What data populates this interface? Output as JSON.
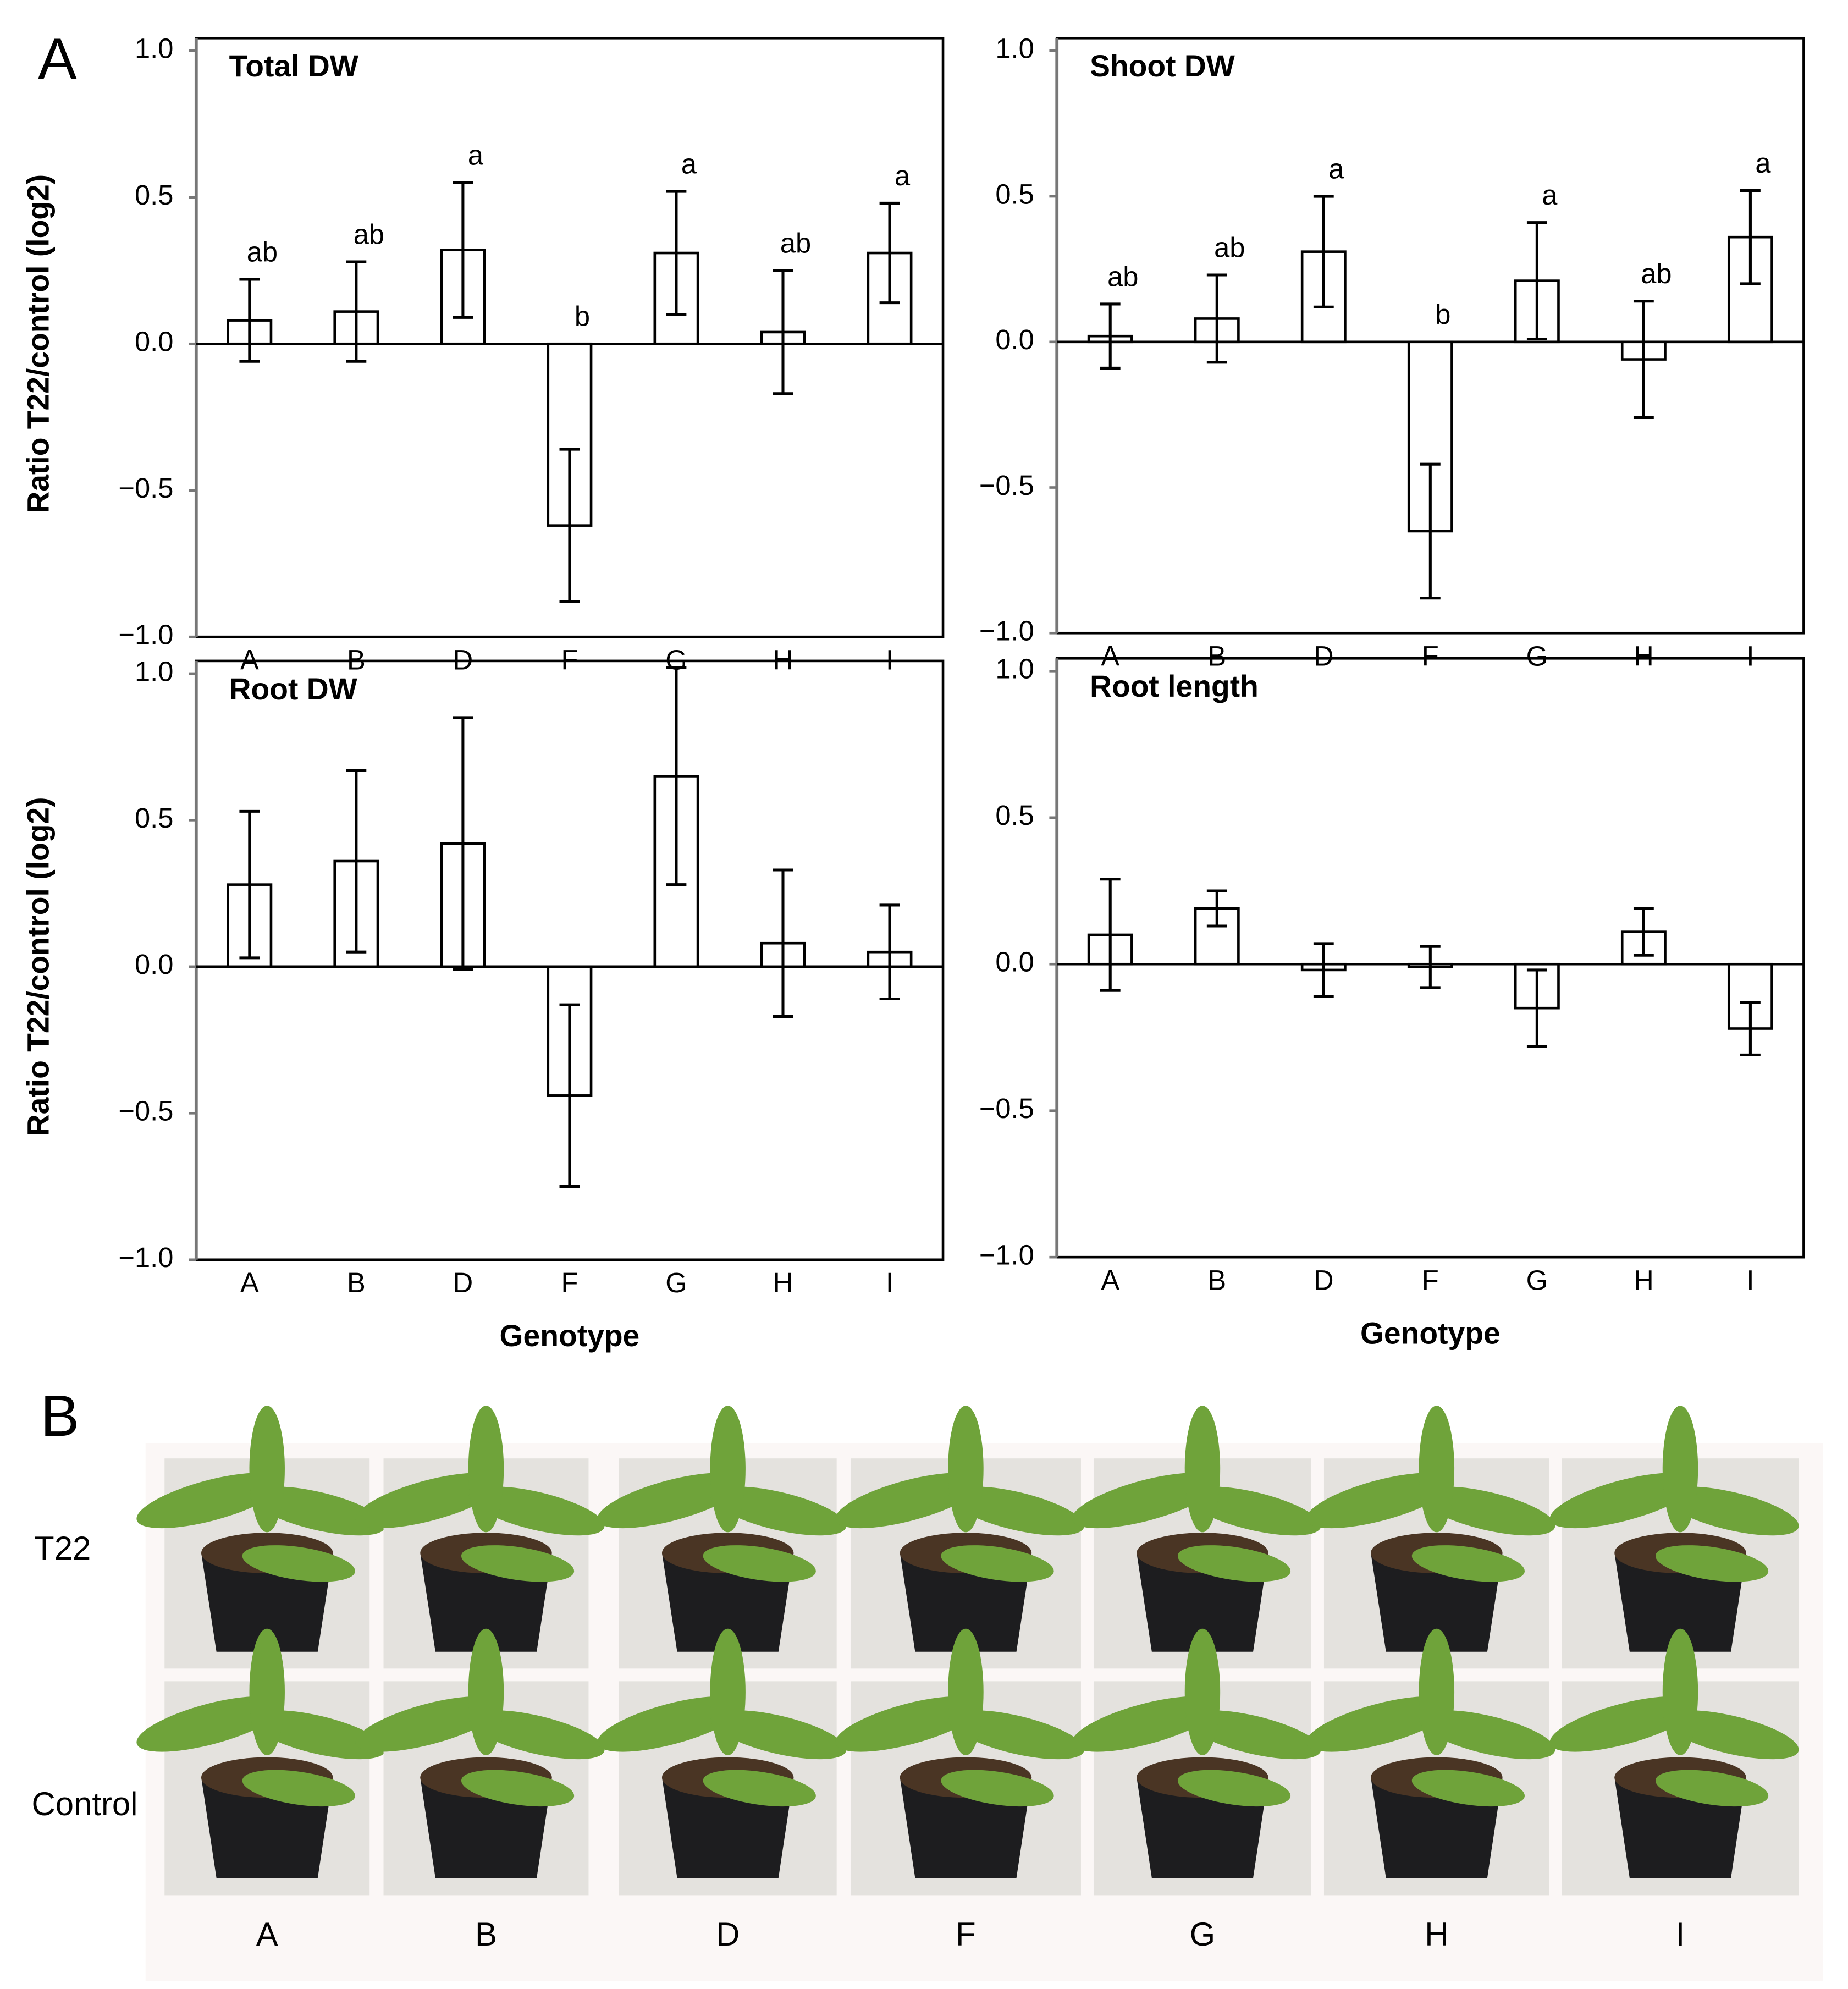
{
  "panel_labels": [
    "A",
    "B"
  ],
  "chart_data": [
    {
      "type": "bar",
      "title": "Total DW",
      "ylabel": "Ratio T22/control  (log2)",
      "categories": [
        "A",
        "B",
        "D",
        "F",
        "G",
        "H",
        "I"
      ],
      "values": [
        0.08,
        0.11,
        0.32,
        -0.62,
        0.31,
        0.04,
        0.31
      ],
      "errors": [
        0.14,
        0.17,
        0.23,
        0.26,
        0.21,
        0.21,
        0.17
      ],
      "annotations": [
        "ab",
        "ab",
        "a",
        "b",
        "a",
        "ab",
        "a"
      ],
      "ylim": [
        -1.0,
        1.0
      ],
      "yticks": [
        {
          "value": -1.0,
          "label": "−1.0"
        },
        {
          "value": -0.5,
          "label": "−0.5"
        },
        {
          "value": 0.0,
          "label": "0.0"
        },
        {
          "value": 0.5,
          "label": "0.5"
        },
        {
          "value": 1.0,
          "label": "1.0"
        }
      ]
    },
    {
      "type": "bar",
      "title": "Shoot DW",
      "categories": [
        "A",
        "B",
        "D",
        "F",
        "G",
        "H",
        "I"
      ],
      "values": [
        0.02,
        0.08,
        0.31,
        -0.65,
        0.21,
        -0.06,
        0.36
      ],
      "errors": [
        0.11,
        0.15,
        0.19,
        0.23,
        0.2,
        0.2,
        0.16
      ],
      "annotations": [
        "ab",
        "ab",
        "a",
        "b",
        "a",
        "ab",
        "a"
      ],
      "ylim": [
        -1.0,
        1.0
      ],
      "yticks": [
        {
          "value": -1.0,
          "label": "−1.0"
        },
        {
          "value": -0.5,
          "label": "−0.5"
        },
        {
          "value": 0.0,
          "label": "0.0"
        },
        {
          "value": 0.5,
          "label": "0.5"
        },
        {
          "value": 1.0,
          "label": "1.0"
        }
      ]
    },
    {
      "type": "bar",
      "title": "Root DW",
      "ylabel": "Ratio T22/control  (log2)",
      "xlabel": "Genotype",
      "categories": [
        "A",
        "B",
        "D",
        "F",
        "G",
        "H",
        "I"
      ],
      "values": [
        0.28,
        0.36,
        0.42,
        -0.44,
        0.65,
        0.08,
        0.05
      ],
      "errors": [
        0.25,
        0.31,
        0.43,
        0.31,
        0.37,
        0.25,
        0.16
      ],
      "ylim": [
        -1.0,
        1.0
      ],
      "yticks": [
        {
          "value": -1.0,
          "label": "−1.0"
        },
        {
          "value": -0.5,
          "label": "−0.5"
        },
        {
          "value": 0.0,
          "label": "0.0"
        },
        {
          "value": 0.5,
          "label": "0.5"
        },
        {
          "value": 1.0,
          "label": "1.0"
        }
      ]
    },
    {
      "type": "bar",
      "title": "Root length",
      "xlabel": "Genotype",
      "categories": [
        "A",
        "B",
        "D",
        "F",
        "G",
        "H",
        "I"
      ],
      "values": [
        0.1,
        0.19,
        -0.02,
        -0.01,
        -0.15,
        0.11,
        -0.22
      ],
      "errors": [
        0.19,
        0.06,
        0.09,
        0.07,
        0.13,
        0.08,
        0.09
      ],
      "ylim": [
        -1.0,
        1.0
      ],
      "yticks": [
        {
          "value": -1.0,
          "label": "−1.0"
        },
        {
          "value": -0.5,
          "label": "−0.5"
        },
        {
          "value": 0.0,
          "label": "0.0"
        },
        {
          "value": 0.5,
          "label": "0.5"
        },
        {
          "value": 1.0,
          "label": "1.0"
        }
      ]
    }
  ],
  "photo_panel": {
    "row_labels": [
      "T22",
      "Control"
    ],
    "column_labels": [
      "A",
      "B",
      "D",
      "F",
      "G",
      "H",
      "I"
    ]
  }
}
